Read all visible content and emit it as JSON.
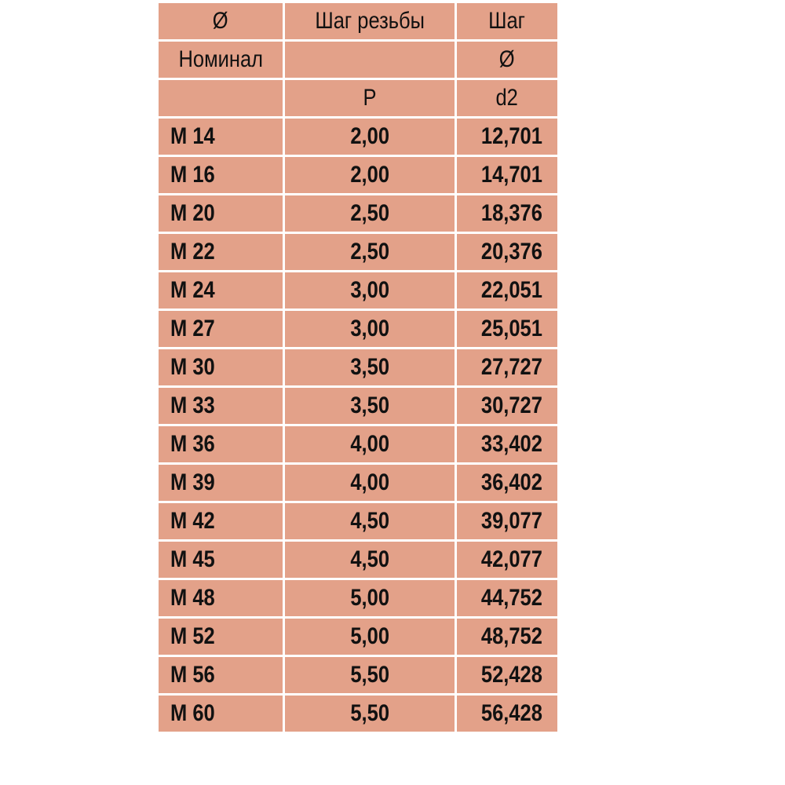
{
  "header_rows": [
    [
      "Ø",
      "Шаг резьбы",
      "Шаг"
    ],
    [
      "Номинал",
      "",
      "Ø"
    ],
    [
      "",
      "P",
      "d2"
    ]
  ],
  "rows": [
    [
      "M 14",
      "2,00",
      "12,701"
    ],
    [
      "M 16",
      "2,00",
      "14,701"
    ],
    [
      "M 20",
      "2,50",
      "18,376"
    ],
    [
      "M 22",
      "2,50",
      "20,376"
    ],
    [
      "M 24",
      "3,00",
      "22,051"
    ],
    [
      "M 27",
      "3,00",
      "25,051"
    ],
    [
      "M 30",
      "3,50",
      "27,727"
    ],
    [
      "M 33",
      "3,50",
      "30,727"
    ],
    [
      "M 36",
      "4,00",
      "33,402"
    ],
    [
      "M 39",
      "4,00",
      "36,402"
    ],
    [
      "M 42",
      "4,50",
      "39,077"
    ],
    [
      "M 45",
      "4,50",
      "42,077"
    ],
    [
      "M 48",
      "5,00",
      "44,752"
    ],
    [
      "M 52",
      "5,00",
      "48,752"
    ],
    [
      "M 56",
      "5,50",
      "52,428"
    ],
    [
      "M 60",
      "5,50",
      "56,428"
    ]
  ],
  "colors": {
    "cell": "#e3a189",
    "grid": "#ffffff"
  }
}
